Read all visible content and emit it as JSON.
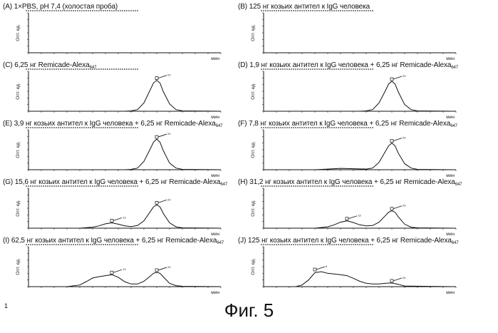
{
  "figure_caption": "Фиг. 5",
  "page_number": "1",
  "chart_data": [
    {
      "id": "A",
      "type": "line",
      "title": "(A) 1×PBS, pH 7,4 (холостая проба)",
      "ylabel": "Опт. ед.",
      "xlabel": "мин",
      "ylim": [
        0,
        1.2
      ],
      "series": [
        {
          "x": [
            0,
            30
          ],
          "y": [
            0,
            0
          ]
        }
      ],
      "peaks": []
    },
    {
      "id": "B",
      "type": "line",
      "title": "(B) 125 нг козьих антител к IgG человека",
      "ylabel": "Опт. ед.",
      "xlabel": "мин",
      "ylim": [
        0,
        1.2
      ],
      "series": [
        {
          "x": [
            0,
            30
          ],
          "y": [
            0,
            0
          ]
        }
      ],
      "peaks": []
    },
    {
      "id": "C",
      "type": "line",
      "title": "(C) 6,25 нг Remicade-Alexa",
      "title_subscript": "647",
      "ylabel": "Опт. ед.",
      "xlabel": "мин",
      "ylim": [
        0,
        1.2
      ],
      "series": [
        {
          "x": [
            0,
            15,
            16,
            17,
            18,
            19,
            19.5,
            20,
            20.5,
            21,
            22,
            23,
            24,
            30
          ],
          "y": [
            0,
            0,
            0.01,
            0.05,
            0.25,
            0.65,
            0.85,
            0.93,
            0.85,
            0.6,
            0.22,
            0.05,
            0.01,
            0
          ]
        }
      ],
      "peaks": [
        {
          "x": 20,
          "y": 0.93,
          "label": "20"
        }
      ]
    },
    {
      "id": "D",
      "type": "line",
      "title": "(D) 1,9 нг козьих антител к IgG человека + 6,25 нг Remicade-Alexa",
      "title_subscript": "647",
      "ylabel": "Опт. ед.",
      "xlabel": "мин",
      "ylim": [
        0,
        1.2
      ],
      "series": [
        {
          "x": [
            0,
            15,
            16,
            17,
            18,
            19,
            19.5,
            20,
            20.5,
            21,
            22,
            23,
            24,
            30
          ],
          "y": [
            0,
            0,
            0.01,
            0.05,
            0.25,
            0.62,
            0.82,
            0.9,
            0.82,
            0.58,
            0.2,
            0.05,
            0.01,
            0
          ]
        }
      ],
      "peaks": [
        {
          "x": 20,
          "y": 0.9,
          "label": "20"
        }
      ]
    },
    {
      "id": "E",
      "type": "line",
      "title": "(E) 3,9 нг козьих антител к IgG человека + 6,25 нг Remicade-Alexa",
      "title_subscript": "647",
      "ylabel": "Опт. ед.",
      "xlabel": "мин",
      "ylim": [
        0,
        1.2
      ],
      "series": [
        {
          "x": [
            0,
            15,
            16,
            17,
            18,
            19,
            19.5,
            20,
            20.5,
            21,
            22,
            23,
            24,
            30
          ],
          "y": [
            0,
            0,
            0.01,
            0.05,
            0.25,
            0.63,
            0.83,
            0.92,
            0.83,
            0.58,
            0.2,
            0.05,
            0.01,
            0
          ]
        }
      ],
      "peaks": [
        {
          "x": 20,
          "y": 0.92,
          "label": "20"
        }
      ]
    },
    {
      "id": "F",
      "type": "line",
      "title": "(F) 7,8 нг козьих антител к IgG человека + 6,25 нг Remicade-Alexa",
      "title_subscript": "647",
      "ylabel": "Опт. ед.",
      "xlabel": "мин",
      "ylim": [
        0,
        1.2
      ],
      "series": [
        {
          "x": [
            0,
            8,
            10,
            12,
            14,
            16,
            17,
            18,
            19,
            19.5,
            20,
            20.5,
            21,
            22,
            23,
            24,
            30
          ],
          "y": [
            0,
            0,
            0.02,
            0.04,
            0.03,
            0.02,
            0.05,
            0.22,
            0.55,
            0.72,
            0.8,
            0.72,
            0.5,
            0.18,
            0.05,
            0.01,
            0
          ]
        }
      ],
      "peaks": [
        {
          "x": 20,
          "y": 0.8,
          "label": "20"
        }
      ]
    },
    {
      "id": "G",
      "type": "line",
      "title": "(G) 15,6 нг козьих антител к IgG человека + 6,25 нг Remicade-Alexa",
      "title_subscript": "647",
      "ylabel": "Опт. ед.",
      "xlabel": "мин",
      "ylim": [
        0,
        1.2
      ],
      "series": [
        {
          "x": [
            0,
            8,
            10,
            11,
            12,
            13,
            14,
            15,
            16,
            17,
            18,
            19,
            19.5,
            20,
            20.5,
            21,
            22,
            23,
            24,
            30
          ],
          "y": [
            0,
            0,
            0.03,
            0.07,
            0.13,
            0.16,
            0.12,
            0.07,
            0.05,
            0.08,
            0.22,
            0.5,
            0.64,
            0.7,
            0.64,
            0.45,
            0.16,
            0.04,
            0.01,
            0
          ]
        }
      ],
      "peaks": [
        {
          "x": 13,
          "y": 0.16,
          "label": "13"
        },
        {
          "x": 20,
          "y": 0.7,
          "label": "20"
        }
      ]
    },
    {
      "id": "H",
      "type": "line",
      "title": "(H) 31,2 нг козьих антител к IgG человека + 6,25 нг Remicade-Alexa",
      "title_subscript": "647",
      "ylabel": "Опт. ед.",
      "xlabel": "мин",
      "ylim": [
        0,
        1.2
      ],
      "series": [
        {
          "x": [
            0,
            8,
            10,
            11,
            12,
            13,
            14,
            15,
            16,
            17,
            18,
            19,
            19.5,
            20,
            20.5,
            21,
            22,
            23,
            24,
            30
          ],
          "y": [
            0,
            0,
            0.04,
            0.1,
            0.18,
            0.22,
            0.17,
            0.1,
            0.07,
            0.08,
            0.18,
            0.38,
            0.48,
            0.52,
            0.48,
            0.34,
            0.12,
            0.03,
            0.01,
            0
          ]
        }
      ],
      "peaks": [
        {
          "x": 13,
          "y": 0.22,
          "label": "13"
        },
        {
          "x": 20,
          "y": 0.52,
          "label": "20"
        }
      ]
    },
    {
      "id": "I",
      "type": "line",
      "title": "(I) 62,5 нг козьих антител к IgG человека + 6,25 нг Remicade-Alexa",
      "title_subscript": "647",
      "ylabel": "Опт. ед.",
      "xlabel": "мин",
      "ylim": [
        0,
        1.2
      ],
      "series": [
        {
          "x": [
            0,
            6,
            8,
            9,
            10,
            11,
            12,
            13,
            14,
            15,
            16,
            17,
            18,
            19,
            19.5,
            20,
            20.5,
            21,
            22,
            23,
            24,
            30
          ],
          "y": [
            0,
            0,
            0.05,
            0.15,
            0.26,
            0.3,
            0.33,
            0.36,
            0.28,
            0.15,
            0.08,
            0.08,
            0.16,
            0.32,
            0.4,
            0.43,
            0.4,
            0.3,
            0.1,
            0.03,
            0.01,
            0
          ]
        }
      ],
      "peaks": [
        {
          "x": 13,
          "y": 0.36,
          "label": "13"
        },
        {
          "x": 20,
          "y": 0.43,
          "label": "20"
        }
      ]
    },
    {
      "id": "J",
      "type": "line",
      "title": "(J) 125 нг козьих антител к IgG человека + 6,25 нг Remicade-Alexa",
      "title_subscript": "647",
      "ylabel": "Опт. ед.",
      "xlabel": "мин",
      "ylim": [
        0,
        1.2
      ],
      "series": [
        {
          "x": [
            0,
            5,
            6,
            7,
            8,
            9,
            10,
            11,
            12,
            13,
            14,
            15,
            16,
            17,
            18,
            19,
            20,
            21,
            22,
            30
          ],
          "y": [
            0,
            0,
            0.05,
            0.2,
            0.42,
            0.45,
            0.4,
            0.38,
            0.36,
            0.33,
            0.25,
            0.16,
            0.1,
            0.08,
            0.08,
            0.1,
            0.11,
            0.07,
            0.02,
            0
          ]
        }
      ],
      "peaks": [
        {
          "x": 8,
          "y": 0.45,
          "label": "8"
        },
        {
          "x": 20,
          "y": 0.11,
          "label": "20"
        }
      ]
    }
  ]
}
